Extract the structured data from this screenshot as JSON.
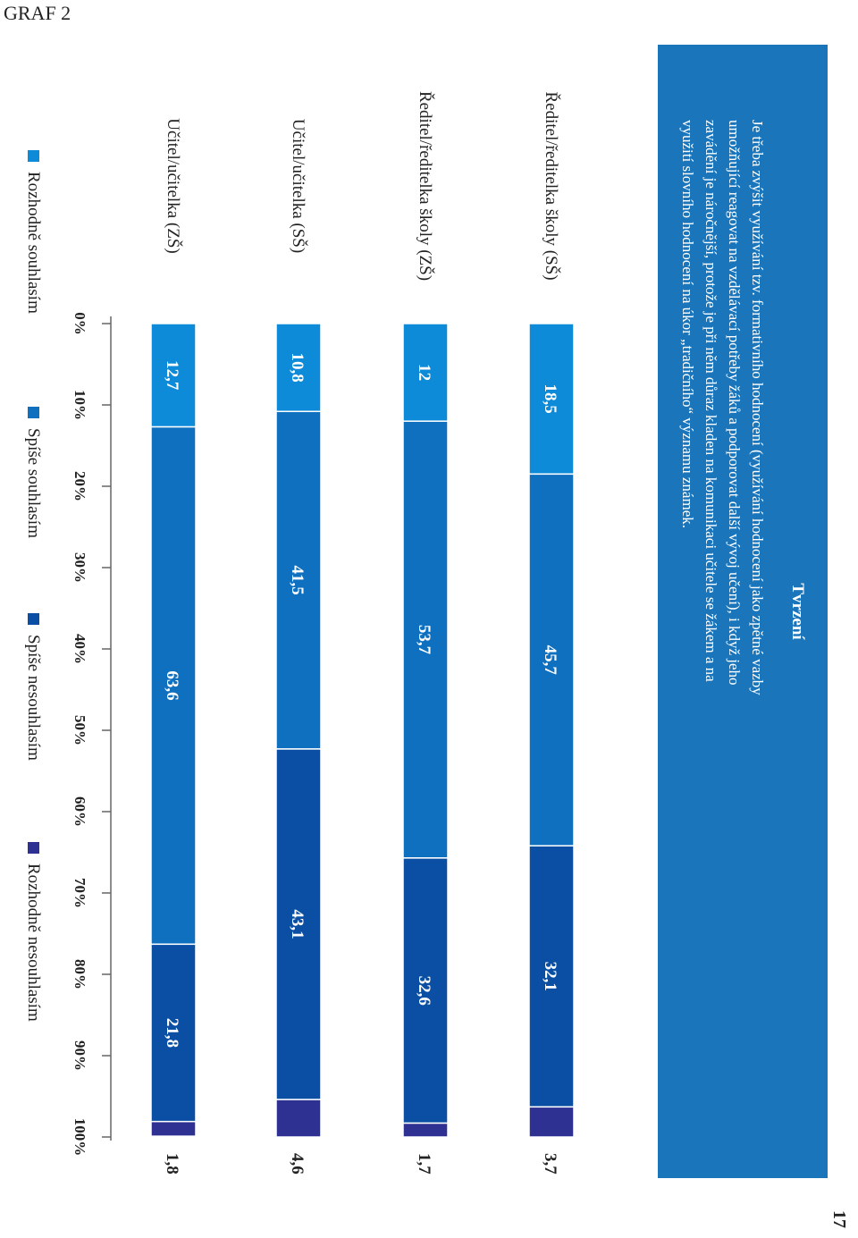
{
  "page": {
    "graf_label": "GRAF 2",
    "page_number": "17"
  },
  "chart_data": {
    "type": "bar",
    "orientation": "horizontal-stacked-100-percent",
    "rotated": true,
    "title": "Tvrzení",
    "subtitle": "Je třeba zvýšit využívání tzv. formativního hodnocení (využívání hodnocení jako zpětné vazby umožňující reagovat na vzdělávací potřeby žáků a podporovat další vývoj učení), i když jeho zavádění je náročnější, protože je při něm důraz kladen na komunikaci učitele se žákem a na využití slovního hodnocení na úkor „tradičního“ významu známek.",
    "categories": [
      "Ředitel/ředitelka školy (SŠ)",
      "Ředitel/ředitelka školy (ZŠ)",
      "Učitel/učitelka (SŠ)",
      "Učitel/učitelka (ZŠ)"
    ],
    "series": [
      {
        "name": "Rozhodně souhlasím",
        "color": "#0d8ad8",
        "values": [
          18.5,
          12,
          10.8,
          12.7
        ],
        "labels": [
          "18,5",
          "12",
          "10,8",
          "12,7"
        ]
      },
      {
        "name": "Spíše souhlasím",
        "color": "#1070c0",
        "values": [
          45.7,
          53.7,
          41.5,
          63.6
        ],
        "labels": [
          "45,7",
          "53,7",
          "41,5",
          "63,6"
        ]
      },
      {
        "name": "Spíše nesouhlasím",
        "color": "#0a4fa3",
        "values": [
          32.1,
          32.6,
          43.1,
          21.8
        ],
        "labels": [
          "32,1",
          "32,6",
          "43,1",
          "21,8"
        ]
      },
      {
        "name": "Rozhodně nesouhlasím",
        "color": "#2e3192",
        "values": [
          3.7,
          1.7,
          4.6,
          1.8
        ],
        "labels": [
          "3,7",
          "1,7",
          "4,6",
          "1,8"
        ]
      }
    ],
    "xlim": [
      0,
      100
    ],
    "xticks": [
      "0%",
      "10%",
      "20%",
      "30%",
      "40%",
      "50%",
      "60%",
      "70%",
      "80%",
      "90%",
      "100%"
    ],
    "grid": false,
    "legend": "bottom",
    "header_box_color": "#1a75bb"
  }
}
